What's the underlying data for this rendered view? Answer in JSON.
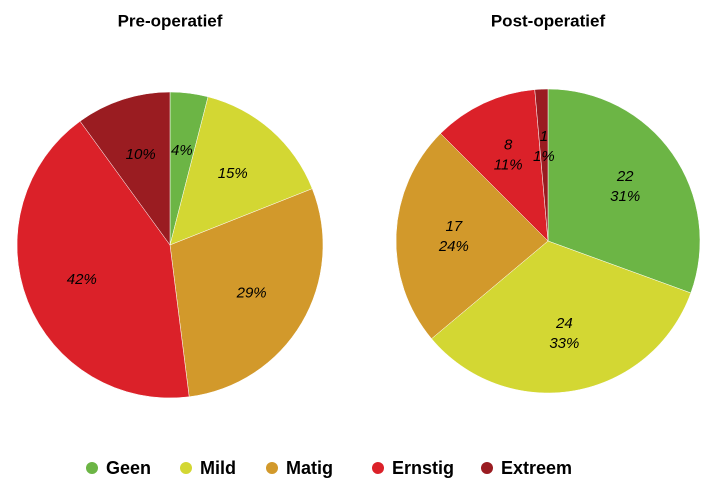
{
  "legend": {
    "categories": [
      "Geen",
      "Mild",
      "Matig",
      "Ernstig",
      "Extreem"
    ],
    "colors": [
      "#6cb545",
      "#d3d733",
      "#d2992b",
      "#db2129",
      "#9a1c21"
    ]
  },
  "chart_data": [
    {
      "type": "pie",
      "title": "Pre-operatief",
      "values": [
        4,
        15,
        29,
        42,
        10
      ],
      "value_labels": [
        "4%",
        "15%",
        "29%",
        "42%",
        "10%"
      ]
    },
    {
      "type": "pie",
      "title": "Post-operatief",
      "values": [
        22,
        24,
        17,
        8,
        1
      ],
      "percent_labels": [
        "31%",
        "33%",
        "24%",
        "11%",
        "1%"
      ]
    }
  ]
}
